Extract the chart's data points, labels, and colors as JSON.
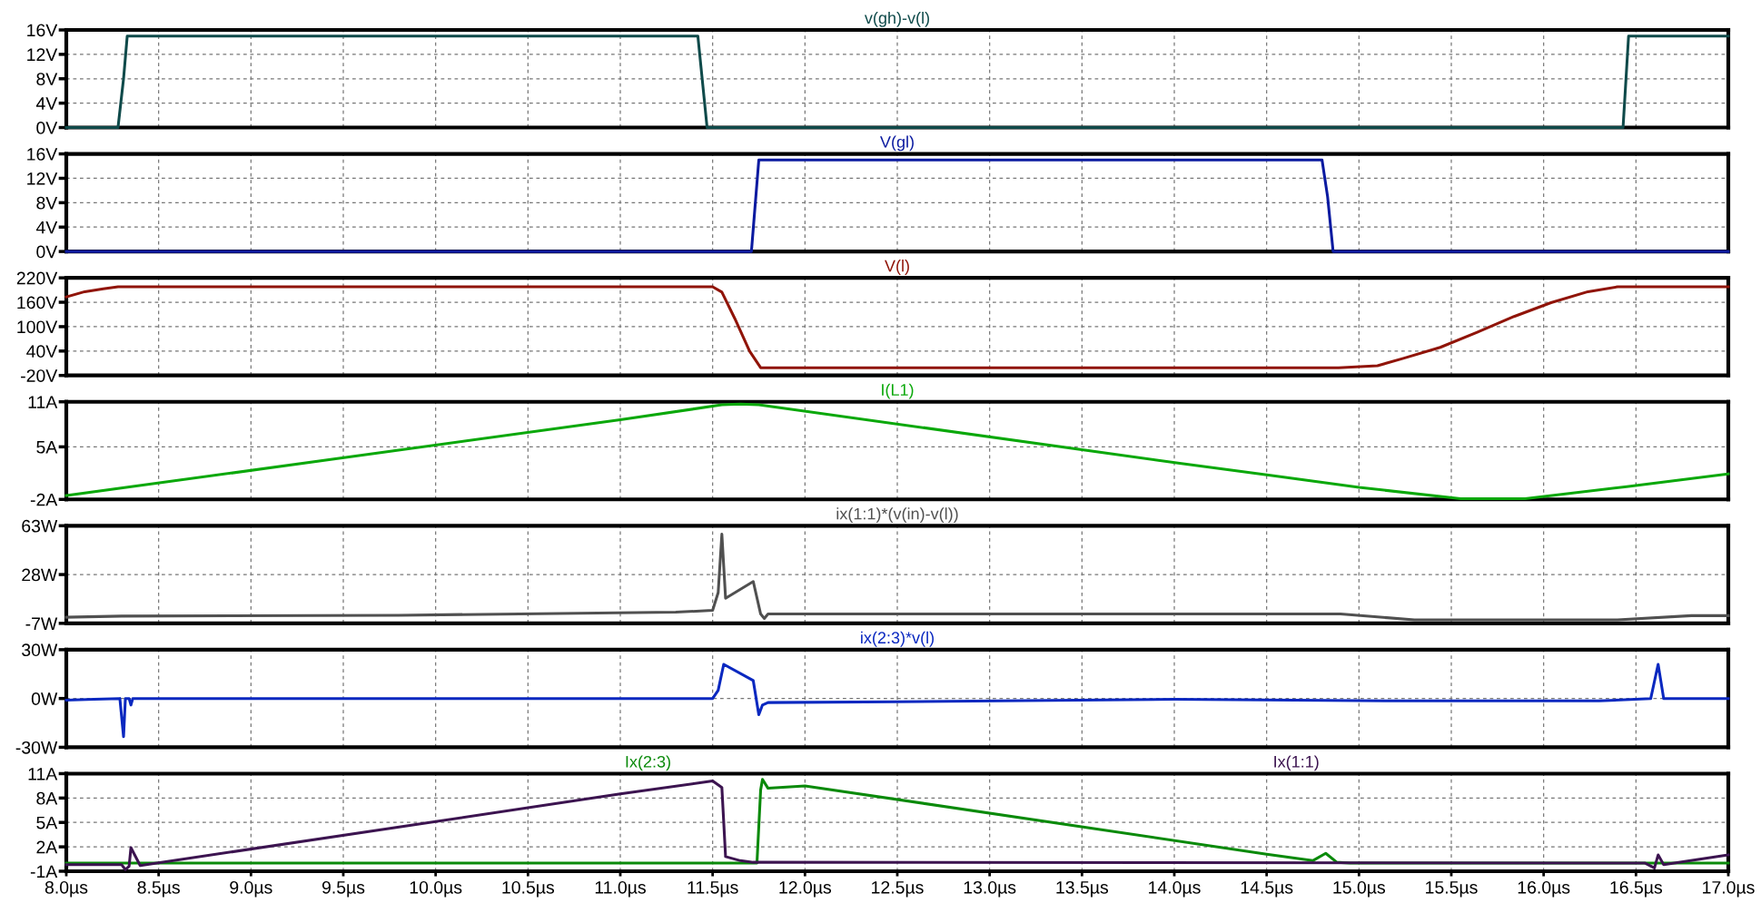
{
  "chart_data": [
    {
      "type": "line",
      "xlim": [
        8.0,
        17.0
      ],
      "xticks": [
        {
          "value": 8.0,
          "label": null
        },
        {
          "value": 8.5,
          "label": null
        },
        {
          "value": 9.0,
          "label": null
        },
        {
          "value": 9.5,
          "label": null
        },
        {
          "value": 10.0,
          "label": null
        },
        {
          "value": 10.5,
          "label": null
        },
        {
          "value": 11.0,
          "label": null
        },
        {
          "value": 11.5,
          "label": null
        },
        {
          "value": 12.0,
          "label": null
        },
        {
          "value": 12.5,
          "label": null
        },
        {
          "value": 13.0,
          "label": null
        },
        {
          "value": 13.5,
          "label": null
        },
        {
          "value": 14.0,
          "label": null
        },
        {
          "value": 14.5,
          "label": null
        },
        {
          "value": 15.0,
          "label": null
        },
        {
          "value": 15.5,
          "label": null
        },
        {
          "value": 16.0,
          "label": null
        },
        {
          "value": 16.5,
          "label": null
        },
        {
          "value": 17.0,
          "label": null
        }
      ],
      "ylim": [
        0,
        16
      ],
      "yticks": [
        {
          "value": 0,
          "label": "0V"
        },
        {
          "value": 4,
          "label": "4V"
        },
        {
          "value": 8,
          "label": "8V"
        },
        {
          "value": 12,
          "label": "12V"
        },
        {
          "value": 16,
          "label": "16V"
        }
      ],
      "grid": true,
      "tick_labels": "y",
      "series": [
        {
          "name": "v(gh)-v(l)",
          "color": "#0f4a4a",
          "x": [
            8.0,
            8.28,
            8.31,
            8.33,
            11.42,
            11.47,
            16.43,
            16.46,
            17.0
          ],
          "values": [
            0,
            0,
            8,
            15,
            15,
            0,
            0,
            15,
            15
          ]
        }
      ]
    },
    {
      "type": "line",
      "xlim": [
        8.0,
        17.0
      ],
      "xticks": [
        {
          "value": 8.0,
          "label": null
        },
        {
          "value": 8.5,
          "label": null
        },
        {
          "value": 9.0,
          "label": null
        },
        {
          "value": 9.5,
          "label": null
        },
        {
          "value": 10.0,
          "label": null
        },
        {
          "value": 10.5,
          "label": null
        },
        {
          "value": 11.0,
          "label": null
        },
        {
          "value": 11.5,
          "label": null
        },
        {
          "value": 12.0,
          "label": null
        },
        {
          "value": 12.5,
          "label": null
        },
        {
          "value": 13.0,
          "label": null
        },
        {
          "value": 13.5,
          "label": null
        },
        {
          "value": 14.0,
          "label": null
        },
        {
          "value": 14.5,
          "label": null
        },
        {
          "value": 15.0,
          "label": null
        },
        {
          "value": 15.5,
          "label": null
        },
        {
          "value": 16.0,
          "label": null
        },
        {
          "value": 16.5,
          "label": null
        },
        {
          "value": 17.0,
          "label": null
        }
      ],
      "ylim": [
        0,
        16
      ],
      "yticks": [
        {
          "value": 0,
          "label": "0V"
        },
        {
          "value": 4,
          "label": "4V"
        },
        {
          "value": 8,
          "label": "8V"
        },
        {
          "value": 12,
          "label": "12V"
        },
        {
          "value": 16,
          "label": "16V"
        }
      ],
      "grid": true,
      "tick_labels": "y",
      "series": [
        {
          "name": "V(gl)",
          "color": "#0a1aa0",
          "x": [
            8.0,
            11.71,
            11.75,
            14.8,
            14.83,
            14.86,
            17.0
          ],
          "values": [
            0,
            0,
            15,
            15,
            9,
            0,
            0
          ]
        }
      ]
    },
    {
      "type": "line",
      "xlim": [
        8.0,
        17.0
      ],
      "xticks": [
        {
          "value": 8.0,
          "label": null
        },
        {
          "value": 8.5,
          "label": null
        },
        {
          "value": 9.0,
          "label": null
        },
        {
          "value": 9.5,
          "label": null
        },
        {
          "value": 10.0,
          "label": null
        },
        {
          "value": 10.5,
          "label": null
        },
        {
          "value": 11.0,
          "label": null
        },
        {
          "value": 11.5,
          "label": null
        },
        {
          "value": 12.0,
          "label": null
        },
        {
          "value": 12.5,
          "label": null
        },
        {
          "value": 13.0,
          "label": null
        },
        {
          "value": 13.5,
          "label": null
        },
        {
          "value": 14.0,
          "label": null
        },
        {
          "value": 14.5,
          "label": null
        },
        {
          "value": 15.0,
          "label": null
        },
        {
          "value": 15.5,
          "label": null
        },
        {
          "value": 16.0,
          "label": null
        },
        {
          "value": 16.5,
          "label": null
        },
        {
          "value": 17.0,
          "label": null
        }
      ],
      "ylim": [
        -20,
        220
      ],
      "yticks": [
        {
          "value": -20,
          "label": "-20V"
        },
        {
          "value": 40,
          "label": "40V"
        },
        {
          "value": 100,
          "label": "100V"
        },
        {
          "value": 160,
          "label": "160V"
        },
        {
          "value": 220,
          "label": "220V"
        }
      ],
      "grid": true,
      "tick_labels": "y",
      "series": [
        {
          "name": "V(l)",
          "color": "#901408",
          "x": [
            8.0,
            8.1,
            8.2,
            8.28,
            11.5,
            11.55,
            11.62,
            11.7,
            11.76,
            14.89,
            15.1,
            15.24,
            15.44,
            15.64,
            15.84,
            16.04,
            16.24,
            16.4,
            17.0
          ],
          "values": [
            173,
            186,
            193,
            198,
            198,
            185,
            120,
            40,
            -1,
            -1,
            4,
            22,
            49,
            86,
            125,
            159,
            186,
            198,
            198
          ]
        }
      ]
    },
    {
      "type": "line",
      "xlim": [
        8.0,
        17.0
      ],
      "xticks": [
        {
          "value": 8.0,
          "label": null
        },
        {
          "value": 8.5,
          "label": null
        },
        {
          "value": 9.0,
          "label": null
        },
        {
          "value": 9.5,
          "label": null
        },
        {
          "value": 10.0,
          "label": null
        },
        {
          "value": 10.5,
          "label": null
        },
        {
          "value": 11.0,
          "label": null
        },
        {
          "value": 11.5,
          "label": null
        },
        {
          "value": 12.0,
          "label": null
        },
        {
          "value": 12.5,
          "label": null
        },
        {
          "value": 13.0,
          "label": null
        },
        {
          "value": 13.5,
          "label": null
        },
        {
          "value": 14.0,
          "label": null
        },
        {
          "value": 14.5,
          "label": null
        },
        {
          "value": 15.0,
          "label": null
        },
        {
          "value": 15.5,
          "label": null
        },
        {
          "value": 16.0,
          "label": null
        },
        {
          "value": 16.5,
          "label": null
        },
        {
          "value": 17.0,
          "label": null
        }
      ],
      "ylim": [
        -2,
        11
      ],
      "yticks": [
        {
          "value": -2,
          "label": "-2A"
        },
        {
          "value": 5,
          "label": "5A"
        },
        {
          "value": 11,
          "label": "11A"
        }
      ],
      "grid": true,
      "tick_labels": "y",
      "series": [
        {
          "name": "I(L1)",
          "color": "#0aa80a",
          "x": [
            8.0,
            11.0,
            11.55,
            11.65,
            11.75,
            14.03,
            14.52,
            15.0,
            15.55,
            15.9,
            16.45,
            17.0
          ],
          "values": [
            -1.5,
            8.6,
            10.6,
            10.7,
            10.6,
            2.8,
            1.2,
            -0.4,
            -1.9,
            -1.9,
            -0.3,
            1.4
          ]
        }
      ]
    },
    {
      "type": "line",
      "xlim": [
        8.0,
        17.0
      ],
      "xticks": [
        {
          "value": 8.0,
          "label": null
        },
        {
          "value": 8.5,
          "label": null
        },
        {
          "value": 9.0,
          "label": null
        },
        {
          "value": 9.5,
          "label": null
        },
        {
          "value": 10.0,
          "label": null
        },
        {
          "value": 10.5,
          "label": null
        },
        {
          "value": 11.0,
          "label": null
        },
        {
          "value": 11.5,
          "label": null
        },
        {
          "value": 12.0,
          "label": null
        },
        {
          "value": 12.5,
          "label": null
        },
        {
          "value": 13.0,
          "label": null
        },
        {
          "value": 13.5,
          "label": null
        },
        {
          "value": 14.0,
          "label": null
        },
        {
          "value": 14.5,
          "label": null
        },
        {
          "value": 15.0,
          "label": null
        },
        {
          "value": 15.5,
          "label": null
        },
        {
          "value": 16.0,
          "label": null
        },
        {
          "value": 16.5,
          "label": null
        },
        {
          "value": 17.0,
          "label": null
        }
      ],
      "ylim": [
        -7,
        63
      ],
      "yticks": [
        {
          "value": -7,
          "label": "-7W"
        },
        {
          "value": 28,
          "label": "28W"
        },
        {
          "value": 63,
          "label": "63W"
        }
      ],
      "grid": true,
      "tick_labels": "y",
      "series": [
        {
          "name": "ix(1:1)*(v(in)-v(l))",
          "color": "#505050",
          "x": [
            8.0,
            8.3,
            9.8,
            11.3,
            11.5,
            11.53,
            11.55,
            11.57,
            11.72,
            11.76,
            11.78,
            11.8,
            14.9,
            15.3,
            16.4,
            16.8,
            17.0
          ],
          "values": [
            -2.6,
            -1.8,
            -1.2,
            1.0,
            2.3,
            15,
            57,
            11,
            23,
            -0.3,
            -3.5,
            -0.3,
            -0.3,
            -4.5,
            -4.5,
            -1.5,
            -1.5
          ]
        }
      ]
    },
    {
      "type": "line",
      "xlim": [
        8.0,
        17.0
      ],
      "xticks": [
        {
          "value": 8.0,
          "label": null
        },
        {
          "value": 8.5,
          "label": null
        },
        {
          "value": 9.0,
          "label": null
        },
        {
          "value": 9.5,
          "label": null
        },
        {
          "value": 10.0,
          "label": null
        },
        {
          "value": 10.5,
          "label": null
        },
        {
          "value": 11.0,
          "label": null
        },
        {
          "value": 11.5,
          "label": null
        },
        {
          "value": 12.0,
          "label": null
        },
        {
          "value": 12.5,
          "label": null
        },
        {
          "value": 13.0,
          "label": null
        },
        {
          "value": 13.5,
          "label": null
        },
        {
          "value": 14.0,
          "label": null
        },
        {
          "value": 14.5,
          "label": null
        },
        {
          "value": 15.0,
          "label": null
        },
        {
          "value": 15.5,
          "label": null
        },
        {
          "value": 16.0,
          "label": null
        },
        {
          "value": 16.5,
          "label": null
        },
        {
          "value": 17.0,
          "label": null
        }
      ],
      "ylim": [
        -30,
        30
      ],
      "yticks": [
        {
          "value": -30,
          "label": "-30W"
        },
        {
          "value": 0,
          "label": "0W"
        },
        {
          "value": 30,
          "label": "30W"
        }
      ],
      "grid": true,
      "tick_labels": "y",
      "series": [
        {
          "name": "ix(2:3)*v(l)",
          "color": "#0a28c0",
          "x": [
            8.0,
            8.15,
            8.29,
            8.31,
            8.32,
            8.34,
            8.35,
            8.36,
            11.5,
            11.53,
            11.56,
            11.72,
            11.75,
            11.77,
            11.8,
            12.5,
            14.0,
            15.2,
            16.3,
            16.58,
            16.62,
            16.65,
            17.0
          ],
          "values": [
            -1,
            -0.5,
            0,
            -23.5,
            0,
            0,
            -4,
            0,
            0,
            5,
            21,
            11,
            -10,
            -4,
            -2.5,
            -2,
            -0.5,
            -1.5,
            -1.5,
            0,
            21,
            0,
            0
          ]
        }
      ]
    },
    {
      "type": "line",
      "xlim": [
        8.0,
        17.0
      ],
      "xticks": [
        {
          "value": 8.0,
          "label": "8.0µs"
        },
        {
          "value": 8.5,
          "label": "8.5µs"
        },
        {
          "value": 9.0,
          "label": "9.0µs"
        },
        {
          "value": 9.5,
          "label": "9.5µs"
        },
        {
          "value": 10.0,
          "label": "10.0µs"
        },
        {
          "value": 10.5,
          "label": "10.5µs"
        },
        {
          "value": 11.0,
          "label": "11.0µs"
        },
        {
          "value": 11.5,
          "label": "11.5µs"
        },
        {
          "value": 12.0,
          "label": "12.0µs"
        },
        {
          "value": 12.5,
          "label": "12.5µs"
        },
        {
          "value": 13.0,
          "label": "13.0µs"
        },
        {
          "value": 13.5,
          "label": "13.5µs"
        },
        {
          "value": 14.0,
          "label": "14.0µs"
        },
        {
          "value": 14.5,
          "label": "14.5µs"
        },
        {
          "value": 15.0,
          "label": "15.0µs"
        },
        {
          "value": 15.5,
          "label": "15.5µs"
        },
        {
          "value": 16.0,
          "label": "16.0µs"
        },
        {
          "value": 16.5,
          "label": "16.5µs"
        },
        {
          "value": 17.0,
          "label": "17.0µs"
        }
      ],
      "ylim": [
        -1,
        11
      ],
      "yticks": [
        {
          "value": -1,
          "label": "-1A"
        },
        {
          "value": 2,
          "label": "2A"
        },
        {
          "value": 5,
          "label": "5A"
        },
        {
          "value": 8,
          "label": "8A"
        },
        {
          "value": 11,
          "label": "11A"
        }
      ],
      "grid": true,
      "series": [
        {
          "name": "Ix(2:3)",
          "color": "#0a8a0a",
          "x": [
            8.0,
            11.74,
            11.76,
            11.77,
            11.8,
            12.0,
            14.5,
            14.75,
            14.82,
            14.88,
            14.95,
            17.0
          ],
          "values": [
            0,
            0,
            9.0,
            10.3,
            9.2,
            9.5,
            1.1,
            0.3,
            1.2,
            0.1,
            0,
            0
          ]
        },
        {
          "name": "Ix(1:1)",
          "color": "#3c1450",
          "x": [
            8.0,
            8.3,
            8.32,
            8.34,
            8.35,
            8.4,
            11.0,
            11.5,
            11.55,
            11.57,
            11.65,
            11.72,
            16.55,
            16.6,
            16.62,
            16.65,
            17.0
          ],
          "values": [
            -0.2,
            -0.2,
            -0.8,
            -0.4,
            1.9,
            -0.3,
            8.5,
            10.1,
            9.3,
            0.8,
            0.3,
            0.1,
            0,
            -0.6,
            1.0,
            -0.2,
            1.0
          ]
        }
      ]
    }
  ]
}
